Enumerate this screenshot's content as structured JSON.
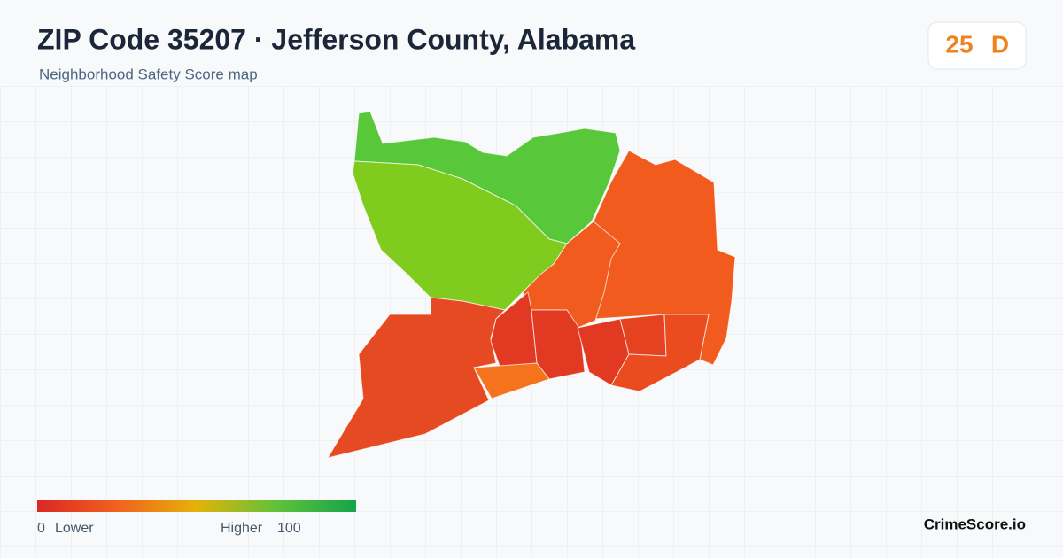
{
  "header": {
    "title": "ZIP Code 35207 · Jefferson County, Alabama",
    "subtitle": "Neighborhood Safety Score map"
  },
  "score": {
    "value": 25,
    "grade": "D"
  },
  "legend": {
    "min": 0,
    "min_label": "Lower",
    "max_label": "Higher",
    "max": 100
  },
  "brand": "CrimeScore.io"
}
